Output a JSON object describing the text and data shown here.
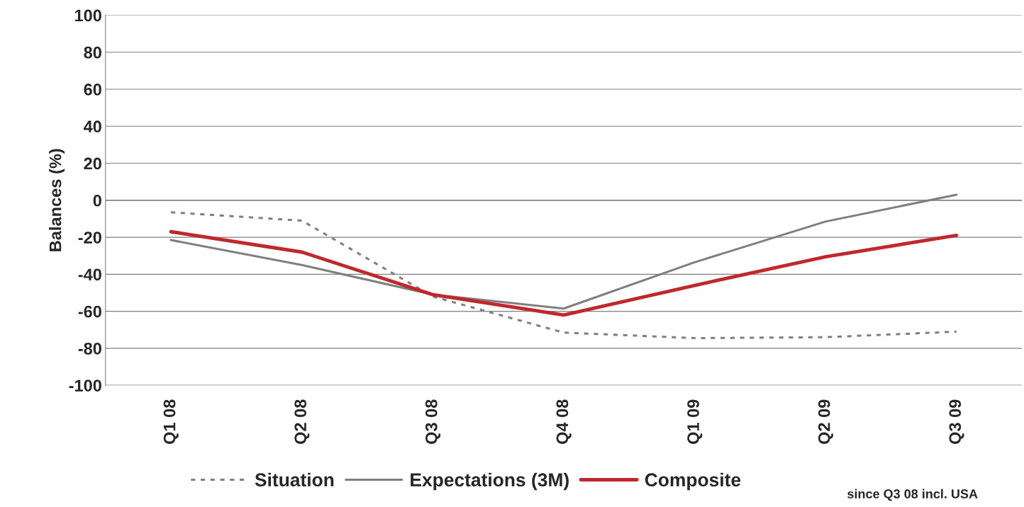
{
  "chart_data": {
    "type": "line",
    "ylabel": "Balances (%)",
    "categories": [
      "Q1 08",
      "Q2 08",
      "Q3 08",
      "Q4 08",
      "Q1 09",
      "Q2 09",
      "Q3 09"
    ],
    "series": [
      {
        "name": "Situation",
        "color": "#808080",
        "line_style": "dotted",
        "values": [
          -6.5,
          -11,
          -52,
          -71.5,
          -74.5,
          -74,
          -71
        ]
      },
      {
        "name": "Expectations (3M)",
        "color": "#7f7f7f",
        "line_style": "solid",
        "values": [
          -21.5,
          -35,
          -51,
          -58.5,
          -33.5,
          -11.5,
          3
        ]
      },
      {
        "name": "Composite",
        "color": "#c0282d",
        "line_style": "solid",
        "values": [
          -17,
          -28,
          -51,
          -62,
          -46,
          -30.5,
          -19
        ]
      }
    ],
    "ylim": [
      -100,
      100
    ],
    "yticks": [
      -100,
      -80,
      -60,
      -40,
      -20,
      0,
      20,
      40,
      60,
      80,
      100
    ],
    "grid": "y",
    "legend": "bottom",
    "marker": "none",
    "annotations": [
      "since Q3 08 incl. USA"
    ]
  }
}
